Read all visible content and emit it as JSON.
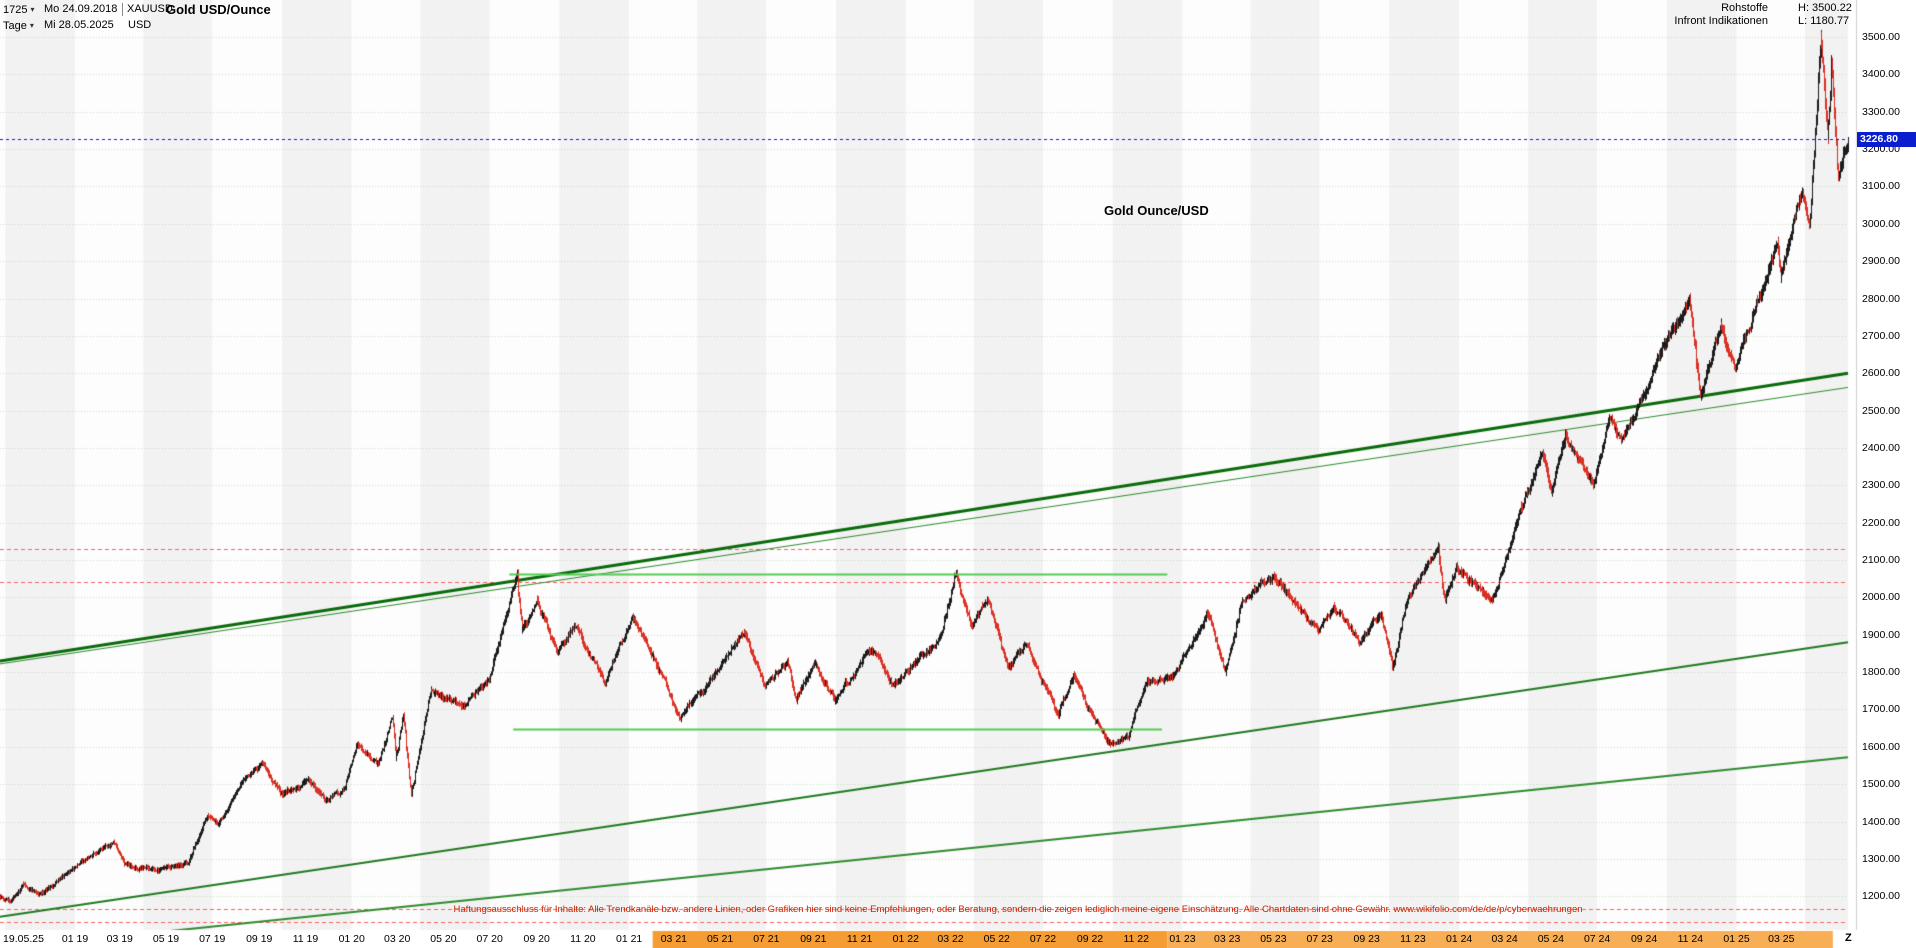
{
  "header": {
    "bars_count": "1725",
    "period": "Tage",
    "start_date": "Mo 24.09.2018",
    "end_date": "Mi 28.05.2025",
    "symbol": "XAUUSD",
    "currency": "USD",
    "title": "Gold USD/Ounce",
    "feed": "Rohstoffe",
    "provider": "Infront Indikationen",
    "high_label": "H: 3500.22",
    "low_label": "L: 1180.77"
  },
  "icons": {
    "dropdown_caret": "▾"
  },
  "annotation": "Gold Ounce/USD",
  "price_marker": {
    "value": "3226.80",
    "color": "#0a1ed0"
  },
  "disclaimer": "Haftungsausschluss für Inhalte: Alle Trendkanäle bzw. andere Linien, oder Grafiken hier sind keine Empfehlungen, oder Beratung, sondern die zeigen lediglich meine eigene Einschätzung. Alle Chartdaten sind ohne Gewähr.  www.wikifolio.com/de/de/p/cyberwaehrungen",
  "y_axis": {
    "labels": [
      "3500.00",
      "3400.00",
      "3300.00",
      "3200.00",
      "3100.00",
      "3000.00",
      "2900.00",
      "2800.00",
      "2700.00",
      "2600.00",
      "2500.00",
      "2400.00",
      "2300.00",
      "2200.00",
      "2100.00",
      "2000.00",
      "1900.00",
      "1800.00",
      "1700.00",
      "1600.00",
      "1500.00",
      "1400.00",
      "1300.00",
      "1200.00"
    ]
  },
  "x_axis": {
    "zoom_label": "Z",
    "ticks": [
      {
        "label": "19.05.25",
        "date": "2018-10-25"
      },
      {
        "label": "01 19",
        "date": "2019-01-01"
      },
      {
        "label": "03 19",
        "date": "2019-03-01"
      },
      {
        "label": "05 19",
        "date": "2019-05-01"
      },
      {
        "label": "07 19",
        "date": "2019-07-01"
      },
      {
        "label": "09 19",
        "date": "2019-09-01"
      },
      {
        "label": "11 19",
        "date": "2019-11-01"
      },
      {
        "label": "01 20",
        "date": "2020-01-01"
      },
      {
        "label": "03 20",
        "date": "2020-03-01"
      },
      {
        "label": "05 20",
        "date": "2020-05-01"
      },
      {
        "label": "07 20",
        "date": "2020-07-01"
      },
      {
        "label": "09 20",
        "date": "2020-09-01"
      },
      {
        "label": "11 20",
        "date": "2020-11-01"
      },
      {
        "label": "01 21",
        "date": "2021-01-01"
      },
      {
        "label": "03 21",
        "date": "2021-03-01"
      },
      {
        "label": "05 21",
        "date": "2021-05-01"
      },
      {
        "label": "07 21",
        "date": "2021-07-01"
      },
      {
        "label": "09 21",
        "date": "2021-09-01"
      },
      {
        "label": "11 21",
        "date": "2021-11-01"
      },
      {
        "label": "01 22",
        "date": "2022-01-01"
      },
      {
        "label": "03 22",
        "date": "2022-03-01"
      },
      {
        "label": "05 22",
        "date": "2022-05-01"
      },
      {
        "label": "07 22",
        "date": "2022-07-01"
      },
      {
        "label": "09 22",
        "date": "2022-09-01"
      },
      {
        "label": "11 22",
        "date": "2022-11-01"
      },
      {
        "label": "01 23",
        "date": "2023-01-01"
      },
      {
        "label": "03 23",
        "date": "2023-03-01"
      },
      {
        "label": "05 23",
        "date": "2023-05-01"
      },
      {
        "label": "07 23",
        "date": "2023-07-01"
      },
      {
        "label": "09 23",
        "date": "2023-09-01"
      },
      {
        "label": "11 23",
        "date": "2023-11-01"
      },
      {
        "label": "01 24",
        "date": "2024-01-01"
      },
      {
        "label": "03 24",
        "date": "2024-03-01"
      },
      {
        "label": "05 24",
        "date": "2024-05-01"
      },
      {
        "label": "07 24",
        "date": "2024-07-01"
      },
      {
        "label": "09 24",
        "date": "2024-09-01"
      },
      {
        "label": "11 24",
        "date": "2024-11-01"
      },
      {
        "label": "01 25",
        "date": "2025-01-01"
      },
      {
        "label": "03 25",
        "date": "2025-03-01"
      }
    ]
  },
  "chart_data": {
    "type": "candlestick",
    "symbol": "XAUUSD",
    "title": "Gold USD/Ounce",
    "period": "Tage",
    "x_start": "2018-09-24",
    "x_end": "2025-05-28",
    "ylim": [
      1200,
      3500
    ],
    "y_step": 100,
    "current_price": 3226.8,
    "session_high": 3500.22,
    "session_low": 1180.77,
    "candle_colors": {
      "up": "#1b1b1b",
      "down": "#dc2f23"
    },
    "band_colors": [
      "#fdfdfd",
      "#f2f2f2"
    ],
    "anchors": [
      [
        "2018-09-24",
        1199
      ],
      [
        "2018-10-09",
        1188
      ],
      [
        "2018-10-26",
        1235
      ],
      [
        "2018-11-13",
        1201
      ],
      [
        "2018-12-10",
        1245
      ],
      [
        "2019-01-31",
        1321
      ],
      [
        "2019-02-20",
        1342
      ],
      [
        "2019-03-07",
        1286
      ],
      [
        "2019-04-23",
        1271
      ],
      [
        "2019-05-30",
        1288
      ],
      [
        "2019-06-25",
        1423
      ],
      [
        "2019-07-09",
        1393
      ],
      [
        "2019-08-07",
        1500
      ],
      [
        "2019-09-04",
        1552
      ],
      [
        "2019-10-01",
        1472
      ],
      [
        "2019-11-04",
        1509
      ],
      [
        "2019-11-26",
        1460
      ],
      [
        "2019-12-23",
        1487
      ],
      [
        "2020-01-08",
        1608
      ],
      [
        "2020-02-05",
        1555
      ],
      [
        "2020-02-24",
        1680
      ],
      [
        "2020-02-28",
        1566
      ],
      [
        "2020-03-09",
        1675
      ],
      [
        "2020-03-19",
        1472
      ],
      [
        "2020-04-14",
        1746
      ],
      [
        "2020-05-27",
        1710
      ],
      [
        "2020-06-30",
        1780
      ],
      [
        "2020-08-06",
        2069
      ],
      [
        "2020-08-12",
        1910
      ],
      [
        "2020-09-01",
        1990
      ],
      [
        "2020-09-28",
        1857
      ],
      [
        "2020-10-21",
        1924
      ],
      [
        "2020-11-09",
        1850
      ],
      [
        "2020-11-30",
        1776
      ],
      [
        "2021-01-05",
        1950
      ],
      [
        "2021-02-17",
        1775
      ],
      [
        "2021-03-08",
        1678
      ],
      [
        "2021-04-22",
        1788
      ],
      [
        "2021-06-01",
        1908
      ],
      [
        "2021-06-29",
        1756
      ],
      [
        "2021-07-29",
        1828
      ],
      [
        "2021-08-09",
        1724
      ],
      [
        "2021-09-03",
        1827
      ],
      [
        "2021-09-29",
        1722
      ],
      [
        "2021-11-16",
        1866
      ],
      [
        "2021-12-15",
        1765
      ],
      [
        "2022-01-25",
        1847
      ],
      [
        "2022-02-17",
        1898
      ],
      [
        "2022-03-08",
        2058
      ],
      [
        "2022-03-29",
        1918
      ],
      [
        "2022-04-18",
        1996
      ],
      [
        "2022-05-16",
        1809
      ],
      [
        "2022-06-10",
        1871
      ],
      [
        "2022-07-21",
        1681
      ],
      [
        "2022-08-10",
        1793
      ],
      [
        "2022-09-01",
        1695
      ],
      [
        "2022-09-28",
        1614
      ],
      [
        "2022-10-21",
        1621
      ],
      [
        "2022-11-15",
        1780
      ],
      [
        "2022-12-19",
        1788
      ],
      [
        "2023-02-02",
        1959
      ],
      [
        "2023-02-27",
        1809
      ],
      [
        "2023-03-20",
        1988
      ],
      [
        "2023-04-13",
        2040
      ],
      [
        "2023-05-04",
        2055
      ],
      [
        "2023-06-29",
        1902
      ],
      [
        "2023-07-19",
        1978
      ],
      [
        "2023-08-21",
        1884
      ],
      [
        "2023-09-20",
        1947
      ],
      [
        "2023-10-05",
        1815
      ],
      [
        "2023-10-27",
        2006
      ],
      [
        "2023-12-04",
        2135
      ],
      [
        "2023-12-13",
        1988
      ],
      [
        "2023-12-28",
        2077
      ],
      [
        "2024-02-14",
        1990
      ],
      [
        "2024-03-21",
        2222
      ],
      [
        "2024-04-19",
        2392
      ],
      [
        "2024-05-02",
        2285
      ],
      [
        "2024-05-20",
        2438
      ],
      [
        "2024-06-26",
        2298
      ],
      [
        "2024-07-17",
        2478
      ],
      [
        "2024-08-02",
        2412
      ],
      [
        "2024-08-27",
        2525
      ],
      [
        "2024-09-26",
        2672
      ],
      [
        "2024-10-31",
        2788
      ],
      [
        "2024-11-14",
        2547
      ],
      [
        "2024-12-11",
        2718
      ],
      [
        "2024-12-30",
        2606
      ],
      [
        "2025-01-31",
        2800
      ],
      [
        "2025-02-24",
        2951
      ],
      [
        "2025-02-28",
        2858
      ],
      [
        "2025-03-28",
        3085
      ],
      [
        "2025-04-07",
        2982
      ],
      [
        "2025-04-22",
        3499
      ],
      [
        "2025-05-01",
        3222
      ],
      [
        "2025-05-06",
        3432
      ],
      [
        "2025-05-15",
        3123
      ],
      [
        "2025-05-28",
        3227
      ]
    ],
    "trendlines": [
      {
        "name": "upper-channel-line",
        "from": [
          "2018-09-24",
          1830
        ],
        "to": [
          "2025-05-28",
          2600
        ],
        "color": "#0a6b0a",
        "width": 3
      },
      {
        "name": "upper-channel-inner-line",
        "from": [
          "2018-09-24",
          1822
        ],
        "to": [
          "2025-05-28",
          2562
        ],
        "color": "#2e8b2e",
        "width": 1
      },
      {
        "name": "lower-channel-line",
        "from": [
          "2018-09-24",
          1145
        ],
        "to": [
          "2025-05-28",
          1880
        ],
        "color": "#1e7a1e",
        "width": 2
      },
      {
        "name": "fan-line",
        "from": [
          "2018-09-24",
          1060
        ],
        "to": [
          "2025-05-28",
          1572
        ],
        "color": "#2e8b2e",
        "width": 2
      }
    ],
    "segments": [
      {
        "name": "resistance-segment",
        "price": 2062,
        "from": "2020-07-27",
        "to": "2022-12-12",
        "color": "#55cc55",
        "width": 2
      },
      {
        "name": "support-segment",
        "price": 1648,
        "from": "2020-08-01",
        "to": "2022-12-05",
        "color": "#55cc55",
        "width": 2
      }
    ],
    "hlines": [
      {
        "name": "current-price-line",
        "price": 3226.8,
        "color": "#1515dd",
        "style": "dashed",
        "width": 1
      },
      {
        "name": "resistance-dashed-upper",
        "price": 2130,
        "color": "#ff6060",
        "style": "dashed",
        "width": 1
      },
      {
        "name": "resistance-dashed-lower",
        "price": 2040,
        "color": "#ff6060",
        "style": "dashed",
        "width": 1
      },
      {
        "name": "support-dashed-upper",
        "price": 1165,
        "color": "#ff6060",
        "style": "dashed",
        "width": 1
      },
      {
        "name": "support-dashed-lower",
        "price": 1132,
        "color": "#ff6060",
        "style": "dashed",
        "width": 1
      }
    ],
    "x_axis_bands": [
      {
        "from": "2021-02-01",
        "to": "2022-12-12",
        "color": "#f59d33"
      },
      {
        "from": "2022-12-12",
        "to": "2025-05-08",
        "color": "#f7ae55"
      }
    ]
  }
}
